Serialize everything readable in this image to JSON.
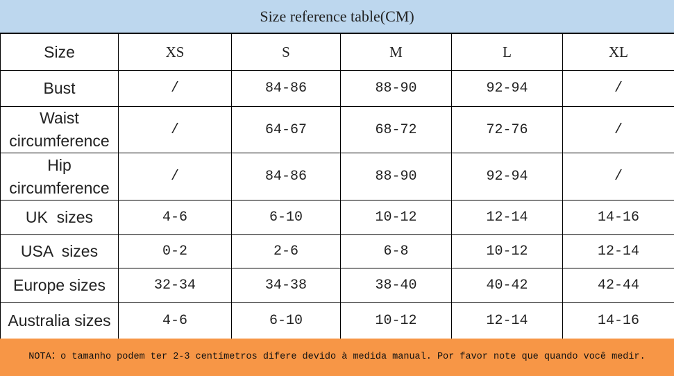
{
  "header": {
    "title": "Size reference table(CM)"
  },
  "table": {
    "rows": [
      [
        "Size",
        "XS",
        "S",
        "M",
        "L",
        "XL"
      ],
      [
        "Bust",
        "/",
        "84-86",
        "88-90",
        "92-94",
        "/"
      ],
      [
        "Waist\ncircumference",
        "/",
        "64-67",
        "68-72",
        "72-76",
        "/"
      ],
      [
        "Hip\ncircumference",
        "/",
        "84-86",
        "88-90",
        "92-94",
        "/"
      ],
      [
        "UK  sizes",
        "4-6",
        "6-10",
        "10-12",
        "12-14",
        "14-16"
      ],
      [
        "USA  sizes",
        "0-2",
        "2-6",
        "6-8",
        "10-12",
        "12-14"
      ],
      [
        "Europe sizes",
        "32-34",
        "34-38",
        "38-40",
        "40-42",
        "42-44"
      ],
      [
        "Australia sizes",
        "4-6",
        "6-10",
        "10-12",
        "12-14",
        "14-16"
      ]
    ]
  },
  "note": "NOTA：o tamanho podem ter 2-3 centímetros difere devido à medida manual. Por favor note que quando você medir."
}
